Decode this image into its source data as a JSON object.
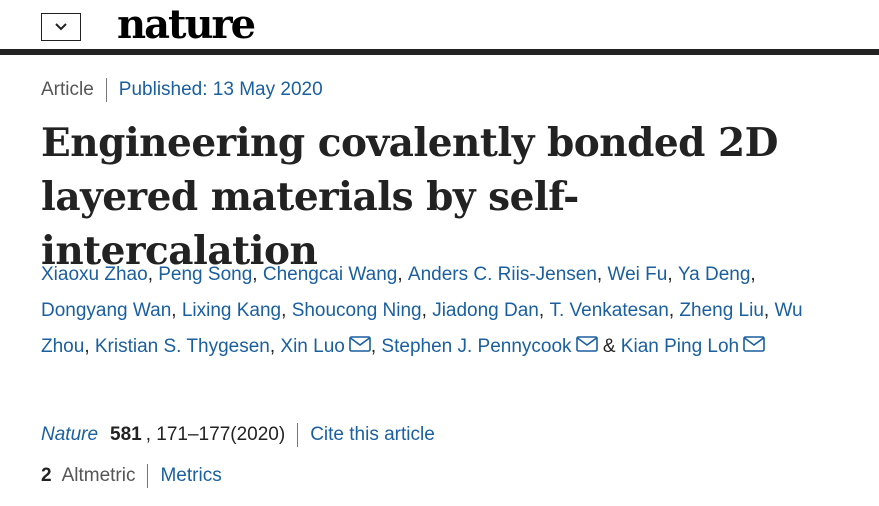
{
  "header": {
    "logo": "nature",
    "menu_icon": "chevron-down-icon"
  },
  "article": {
    "type": "Article",
    "published": "Published: 13 May 2020",
    "title": "Engineering covalently bonded 2D layered materials by self-intercalation",
    "authors": [
      {
        "name": "Xiaoxu Zhao",
        "sep": ", "
      },
      {
        "name": "Peng Song",
        "sep": ", "
      },
      {
        "name": "Chengcai Wang",
        "sep": ", "
      },
      {
        "name": "Anders C. Riis-Jensen",
        "sep": ", "
      },
      {
        "name": "Wei Fu",
        "sep": ", "
      },
      {
        "name": "Ya Deng",
        "sep": ", "
      },
      {
        "name": "Dongyang Wan",
        "sep": ", "
      },
      {
        "name": "Lixing Kang",
        "sep": ", "
      },
      {
        "name": "Shoucong Ning",
        "sep": ", "
      },
      {
        "name": "Jiadong Dan",
        "sep": ", "
      },
      {
        "name": "T. Venkatesan",
        "sep": ", "
      },
      {
        "name": "Zheng Liu",
        "sep": ", "
      },
      {
        "name": "Wu Zhou",
        "sep": ", "
      },
      {
        "name": "Kristian S. Thygesen",
        "sep": ", "
      },
      {
        "name": "Xin Luo",
        "sep": ", ",
        "email": true
      },
      {
        "name": "Stephen J. Pennycook",
        "sep": " & ",
        "email": true
      },
      {
        "name": "Kian Ping Loh",
        "sep": "",
        "email": true
      }
    ],
    "citation": {
      "journal": "Nature",
      "volume": "581",
      "pages": ", 171–177(2020)",
      "cite_link": "Cite this article"
    },
    "metrics": {
      "altmetric_count": "2",
      "altmetric_label": "Altmetric",
      "metrics_link": "Metrics"
    }
  },
  "colors": {
    "link": "#1a5f9f",
    "text": "#222222",
    "muted": "#555555"
  }
}
